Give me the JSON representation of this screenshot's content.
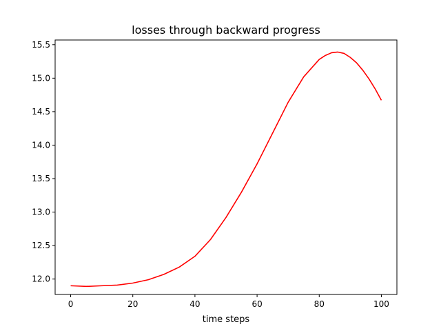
{
  "chart_data": {
    "type": "line",
    "title": "losses through backward progress",
    "xlabel": "time steps",
    "ylabel": "",
    "xlim": [
      -5,
      105
    ],
    "ylim": [
      11.77,
      15.57
    ],
    "xticks": [
      0,
      20,
      40,
      60,
      80,
      100
    ],
    "xtick_labels": [
      "0",
      "20",
      "40",
      "60",
      "80",
      "100"
    ],
    "yticks": [
      12.0,
      12.5,
      13.0,
      13.5,
      14.0,
      14.5,
      15.0,
      15.5
    ],
    "ytick_labels": [
      "12.0",
      "12.5",
      "13.0",
      "13.5",
      "14.0",
      "14.5",
      "15.0",
      "15.5"
    ],
    "grid": false,
    "series": [
      {
        "color": "#ff0000",
        "x": [
          0,
          5,
          10,
          15,
          20,
          25,
          30,
          35,
          40,
          45,
          50,
          55,
          60,
          65,
          70,
          75,
          80,
          82,
          84,
          86,
          88,
          90,
          92,
          94,
          96,
          98,
          100
        ],
        "y": [
          11.9,
          11.89,
          11.9,
          11.91,
          11.94,
          11.99,
          12.07,
          12.18,
          12.34,
          12.59,
          12.92,
          13.3,
          13.72,
          14.18,
          14.64,
          15.02,
          15.28,
          15.34,
          15.38,
          15.39,
          15.37,
          15.31,
          15.23,
          15.12,
          14.99,
          14.84,
          14.67
        ]
      }
    ]
  }
}
